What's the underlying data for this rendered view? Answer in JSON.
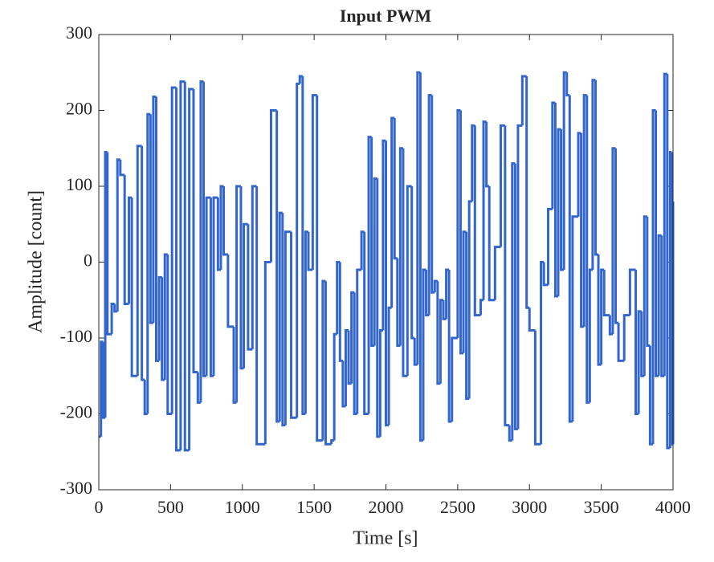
{
  "chart_data": {
    "type": "line",
    "step": true,
    "title": "Input PWM",
    "x_label": "Time [s]",
    "y_label": "Amplitude [count]",
    "x": [
      0,
      15,
      30,
      45,
      60,
      90,
      110,
      130,
      150,
      180,
      210,
      230,
      270,
      300,
      320,
      340,
      360,
      380,
      400,
      420,
      440,
      460,
      480,
      510,
      540,
      570,
      600,
      630,
      660,
      690,
      710,
      730,
      750,
      780,
      800,
      830,
      850,
      870,
      900,
      940,
      960,
      990,
      1010,
      1040,
      1070,
      1100,
      1160,
      1200,
      1240,
      1260,
      1280,
      1300,
      1340,
      1380,
      1400,
      1420,
      1440,
      1460,
      1490,
      1520,
      1560,
      1580,
      1620,
      1640,
      1660,
      1680,
      1700,
      1720,
      1740,
      1760,
      1780,
      1800,
      1830,
      1850,
      1880,
      1900,
      1920,
      1940,
      1960,
      1980,
      2000,
      2020,
      2040,
      2060,
      2080,
      2100,
      2120,
      2150,
      2180,
      2200,
      2220,
      2240,
      2260,
      2280,
      2300,
      2320,
      2340,
      2360,
      2380,
      2400,
      2420,
      2440,
      2460,
      2500,
      2520,
      2540,
      2560,
      2580,
      2600,
      2620,
      2660,
      2680,
      2700,
      2720,
      2760,
      2800,
      2830,
      2860,
      2880,
      2900,
      2920,
      2950,
      2980,
      3000,
      3040,
      3080,
      3100,
      3130,
      3160,
      3180,
      3200,
      3220,
      3240,
      3260,
      3280,
      3300,
      3340,
      3360,
      3380,
      3400,
      3420,
      3440,
      3460,
      3480,
      3500,
      3520,
      3560,
      3580,
      3600,
      3620,
      3660,
      3700,
      3740,
      3760,
      3780,
      3800,
      3820,
      3840,
      3860,
      3880,
      3900,
      3920,
      3940,
      3960,
      3980,
      3990,
      4000
    ],
    "series": [
      {
        "color": "#3366cc",
        "values": [
          -230,
          -105,
          -205,
          145,
          -95,
          -55,
          -65,
          135,
          115,
          -55,
          85,
          -150,
          153,
          -155,
          -200,
          195,
          -80,
          218,
          -130,
          -20,
          -155,
          10,
          -200,
          230,
          -248,
          238,
          -248,
          228,
          -145,
          -185,
          238,
          -150,
          85,
          -150,
          85,
          -10,
          100,
          10,
          -85,
          -185,
          100,
          -140,
          50,
          -115,
          100,
          -240,
          0,
          200,
          -210,
          65,
          -215,
          40,
          -205,
          235,
          245,
          -200,
          40,
          -10,
          220,
          -235,
          -25,
          -240,
          -235,
          -95,
          0,
          -130,
          -190,
          -90,
          -160,
          -40,
          -200,
          -10,
          40,
          -200,
          165,
          -110,
          110,
          -230,
          -90,
          160,
          -215,
          -60,
          190,
          5,
          -110,
          150,
          -150,
          100,
          -100,
          -135,
          250,
          -235,
          -10,
          -70,
          220,
          -40,
          -25,
          -160,
          -50,
          -75,
          -10,
          -210,
          -100,
          200,
          -120,
          40,
          -180,
          80,
          180,
          -70,
          -50,
          185,
          100,
          -50,
          20,
          180,
          -215,
          -235,
          130,
          -220,
          180,
          245,
          -60,
          -90,
          -240,
          0,
          -30,
          70,
          210,
          -45,
          175,
          -10,
          250,
          220,
          -210,
          60,
          170,
          -85,
          220,
          -185,
          -10,
          240,
          10,
          -135,
          -10,
          -70,
          -95,
          150,
          -80,
          -130,
          -70,
          -10,
          -200,
          -65,
          -150,
          60,
          -110,
          -240,
          200,
          -150,
          35,
          -150,
          248,
          -245,
          145,
          -240,
          80
        ]
      }
    ],
    "xlim": [
      0,
      4000
    ],
    "ylim": [
      -300,
      300
    ],
    "xticks": [
      0,
      500,
      1000,
      1500,
      2000,
      2500,
      3000,
      3500,
      4000
    ],
    "yticks": [
      -300,
      -200,
      -100,
      0,
      100,
      200,
      300
    ],
    "grid": false
  }
}
